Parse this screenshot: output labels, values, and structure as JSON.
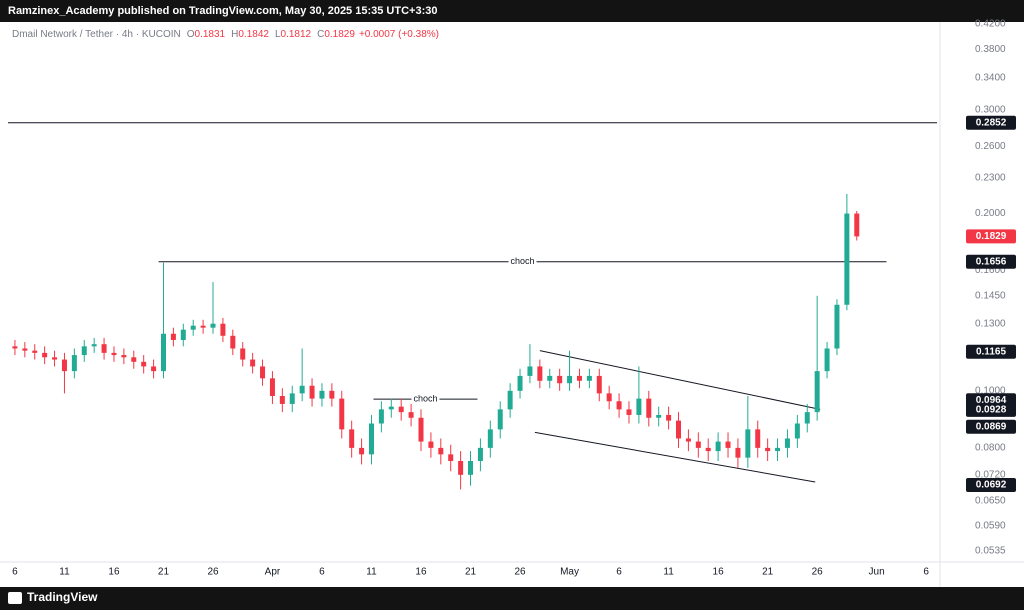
{
  "header": {
    "publisher": "Ramzinex_Academy published on TradingView.com, May 30, 2025 15:35 UTC+3:30"
  },
  "footer": {
    "brand": "TradingView"
  },
  "chart_data": {
    "type": "candlestick",
    "symbol": "Dmail Network / Tether · 4h · KUCOIN",
    "legend": [
      {
        "label": "O",
        "value": 0.1831
      },
      {
        "label": "H",
        "value": 0.1842
      },
      {
        "label": "L",
        "value": 0.1812
      },
      {
        "label": "C",
        "value": 0.1829
      }
    ],
    "change": "+0.0007 (+0.38%)",
    "up_color": "#22ab94",
    "down_color": "#f23645",
    "log_scale": true,
    "grid": false,
    "x": [
      0,
      1,
      2,
      3,
      4,
      5,
      6,
      7,
      8,
      9,
      10,
      11,
      12,
      13,
      14,
      15,
      16,
      17,
      18,
      19,
      20,
      21,
      22,
      23,
      24,
      25,
      26,
      27,
      28,
      29,
      30,
      31,
      32,
      33,
      34,
      35,
      36,
      37,
      38,
      39,
      40,
      41,
      42,
      43,
      44,
      45,
      46,
      47,
      48,
      49,
      50,
      51,
      52,
      53,
      54,
      55,
      56,
      57,
      58,
      59,
      60,
      61,
      62,
      63,
      64,
      65,
      66,
      67,
      68,
      69,
      70,
      71,
      72,
      73,
      74,
      75,
      76,
      77,
      78,
      79,
      80,
      81,
      82,
      83,
      84,
      85
    ],
    "open": [
      0.119,
      0.118,
      0.117,
      0.116,
      0.114,
      0.113,
      0.108,
      0.115,
      0.119,
      0.12,
      0.116,
      0.115,
      0.114,
      0.112,
      0.11,
      0.108,
      0.125,
      0.122,
      0.127,
      0.129,
      0.128,
      0.13,
      0.124,
      0.118,
      0.113,
      0.11,
      0.105,
      0.098,
      0.095,
      0.099,
      0.102,
      0.097,
      0.1,
      0.097,
      0.086,
      0.08,
      0.078,
      0.088,
      0.093,
      0.094,
      0.092,
      0.09,
      0.082,
      0.08,
      0.078,
      0.076,
      0.072,
      0.076,
      0.08,
      0.086,
      0.093,
      0.1,
      0.106,
      0.11,
      0.104,
      0.106,
      0.103,
      0.106,
      0.104,
      0.106,
      0.099,
      0.096,
      0.093,
      0.091,
      0.097,
      0.09,
      0.091,
      0.089,
      0.083,
      0.082,
      0.08,
      0.079,
      0.082,
      0.08,
      0.077,
      0.086,
      0.08,
      0.079,
      0.08,
      0.083,
      0.088,
      0.092,
      0.108,
      0.118,
      0.14,
      0.2
    ],
    "high": [
      0.122,
      0.121,
      0.12,
      0.119,
      0.117,
      0.116,
      0.118,
      0.122,
      0.123,
      0.123,
      0.119,
      0.118,
      0.117,
      0.115,
      0.113,
      0.165,
      0.128,
      0.13,
      0.132,
      0.132,
      0.153,
      0.133,
      0.127,
      0.121,
      0.116,
      0.113,
      0.108,
      0.101,
      0.102,
      0.118,
      0.105,
      0.103,
      0.103,
      0.1,
      0.089,
      0.083,
      0.091,
      0.096,
      0.097,
      0.097,
      0.095,
      0.093,
      0.085,
      0.083,
      0.081,
      0.079,
      0.079,
      0.083,
      0.089,
      0.096,
      0.103,
      0.109,
      0.12,
      0.113,
      0.109,
      0.109,
      0.117,
      0.109,
      0.109,
      0.109,
      0.102,
      0.099,
      0.096,
      0.11,
      0.1,
      0.094,
      0.094,
      0.092,
      0.086,
      0.085,
      0.083,
      0.085,
      0.085,
      0.083,
      0.098,
      0.089,
      0.083,
      0.083,
      0.086,
      0.091,
      0.095,
      0.145,
      0.121,
      0.143,
      0.216,
      0.202
    ],
    "low": [
      0.115,
      0.114,
      0.113,
      0.111,
      0.11,
      0.099,
      0.105,
      0.112,
      0.116,
      0.113,
      0.112,
      0.111,
      0.109,
      0.107,
      0.105,
      0.105,
      0.119,
      0.119,
      0.124,
      0.125,
      0.125,
      0.121,
      0.115,
      0.11,
      0.107,
      0.102,
      0.095,
      0.092,
      0.092,
      0.096,
      0.094,
      0.094,
      0.094,
      0.083,
      0.077,
      0.075,
      0.075,
      0.085,
      0.09,
      0.089,
      0.087,
      0.079,
      0.077,
      0.075,
      0.073,
      0.068,
      0.069,
      0.073,
      0.077,
      0.083,
      0.09,
      0.097,
      0.103,
      0.101,
      0.101,
      0.1,
      0.1,
      0.101,
      0.101,
      0.096,
      0.093,
      0.09,
      0.088,
      0.088,
      0.087,
      0.087,
      0.086,
      0.08,
      0.079,
      0.077,
      0.076,
      0.076,
      0.077,
      0.074,
      0.074,
      0.077,
      0.076,
      0.076,
      0.077,
      0.08,
      0.085,
      0.089,
      0.105,
      0.115,
      0.137,
      0.18
    ],
    "close": [
      0.118,
      0.117,
      0.116,
      0.114,
      0.113,
      0.108,
      0.115,
      0.119,
      0.12,
      0.116,
      0.115,
      0.114,
      0.112,
      0.11,
      0.108,
      0.125,
      0.122,
      0.127,
      0.129,
      0.128,
      0.13,
      0.124,
      0.118,
      0.113,
      0.11,
      0.105,
      0.098,
      0.095,
      0.099,
      0.102,
      0.097,
      0.1,
      0.097,
      0.086,
      0.08,
      0.078,
      0.088,
      0.093,
      0.094,
      0.092,
      0.09,
      0.082,
      0.08,
      0.078,
      0.076,
      0.072,
      0.076,
      0.08,
      0.086,
      0.093,
      0.1,
      0.106,
      0.11,
      0.104,
      0.106,
      0.103,
      0.106,
      0.104,
      0.106,
      0.099,
      0.096,
      0.093,
      0.091,
      0.097,
      0.09,
      0.091,
      0.089,
      0.083,
      0.082,
      0.08,
      0.079,
      0.082,
      0.08,
      0.077,
      0.086,
      0.08,
      0.079,
      0.08,
      0.083,
      0.088,
      0.092,
      0.108,
      0.118,
      0.14,
      0.2,
      0.1829
    ],
    "xlim": [
      -0.7,
      93.1
    ],
    "xticks": [
      {
        "value": 0,
        "label": "6"
      },
      {
        "value": 5,
        "label": "11"
      },
      {
        "value": 10,
        "label": "16"
      },
      {
        "value": 15,
        "label": "21"
      },
      {
        "value": 20,
        "label": "26"
      },
      {
        "value": 26,
        "label": "Apr"
      },
      {
        "value": 31,
        "label": "6"
      },
      {
        "value": 36,
        "label": "11"
      },
      {
        "value": 41,
        "label": "16"
      },
      {
        "value": 46,
        "label": "21"
      },
      {
        "value": 51,
        "label": "26"
      },
      {
        "value": 56,
        "label": "May"
      },
      {
        "value": 61,
        "label": "6"
      },
      {
        "value": 66,
        "label": "11"
      },
      {
        "value": 71,
        "label": "16"
      },
      {
        "value": 76,
        "label": "21"
      },
      {
        "value": 81,
        "label": "26"
      },
      {
        "value": 87,
        "label": "Jun"
      },
      {
        "value": 92,
        "label": "6"
      }
    ],
    "ylim": [
      0.0481,
      0.4296
    ],
    "yticks": [
      {
        "value": 0.42,
        "label": "0.4200"
      },
      {
        "value": 0.38,
        "label": "0.3800"
      },
      {
        "value": 0.34,
        "label": "0.3400"
      },
      {
        "value": 0.3,
        "label": "0.3000"
      },
      {
        "value": 0.26,
        "label": "0.2600"
      },
      {
        "value": 0.23,
        "label": "0.2300"
      },
      {
        "value": 0.2,
        "label": "0.2000"
      },
      {
        "value": 0.16,
        "label": "0.1600"
      },
      {
        "value": 0.145,
        "label": "0.1450"
      },
      {
        "value": 0.13,
        "label": "0.1300"
      },
      {
        "value": 0.1,
        "label": "0.1000"
      },
      {
        "value": 0.08,
        "label": "0.0800"
      },
      {
        "value": 0.072,
        "label": "0.0720"
      },
      {
        "value": 0.065,
        "label": "0.0650"
      },
      {
        "value": 0.059,
        "label": "0.0590"
      },
      {
        "value": 0.0535,
        "label": "0.0535"
      }
    ],
    "levels": [
      0.2852
    ],
    "annotations": [
      {
        "text": "choch",
        "value": 0.1656,
        "x": [
          14.5,
          88
        ]
      },
      {
        "text": "choch",
        "value": 0.0968,
        "x": [
          36.2,
          46.7
        ]
      }
    ],
    "channel": [
      {
        "x": [
          53,
          81.3
        ],
        "values": [
          0.117,
          0.093
        ]
      },
      {
        "x": [
          52.5,
          80.8
        ],
        "values": [
          0.085,
          0.07
        ]
      }
    ],
    "price_markers": [
      0.2852,
      0.1656,
      0.1165,
      0.0964,
      0.0928,
      0.0869,
      0.0692
    ]
  }
}
